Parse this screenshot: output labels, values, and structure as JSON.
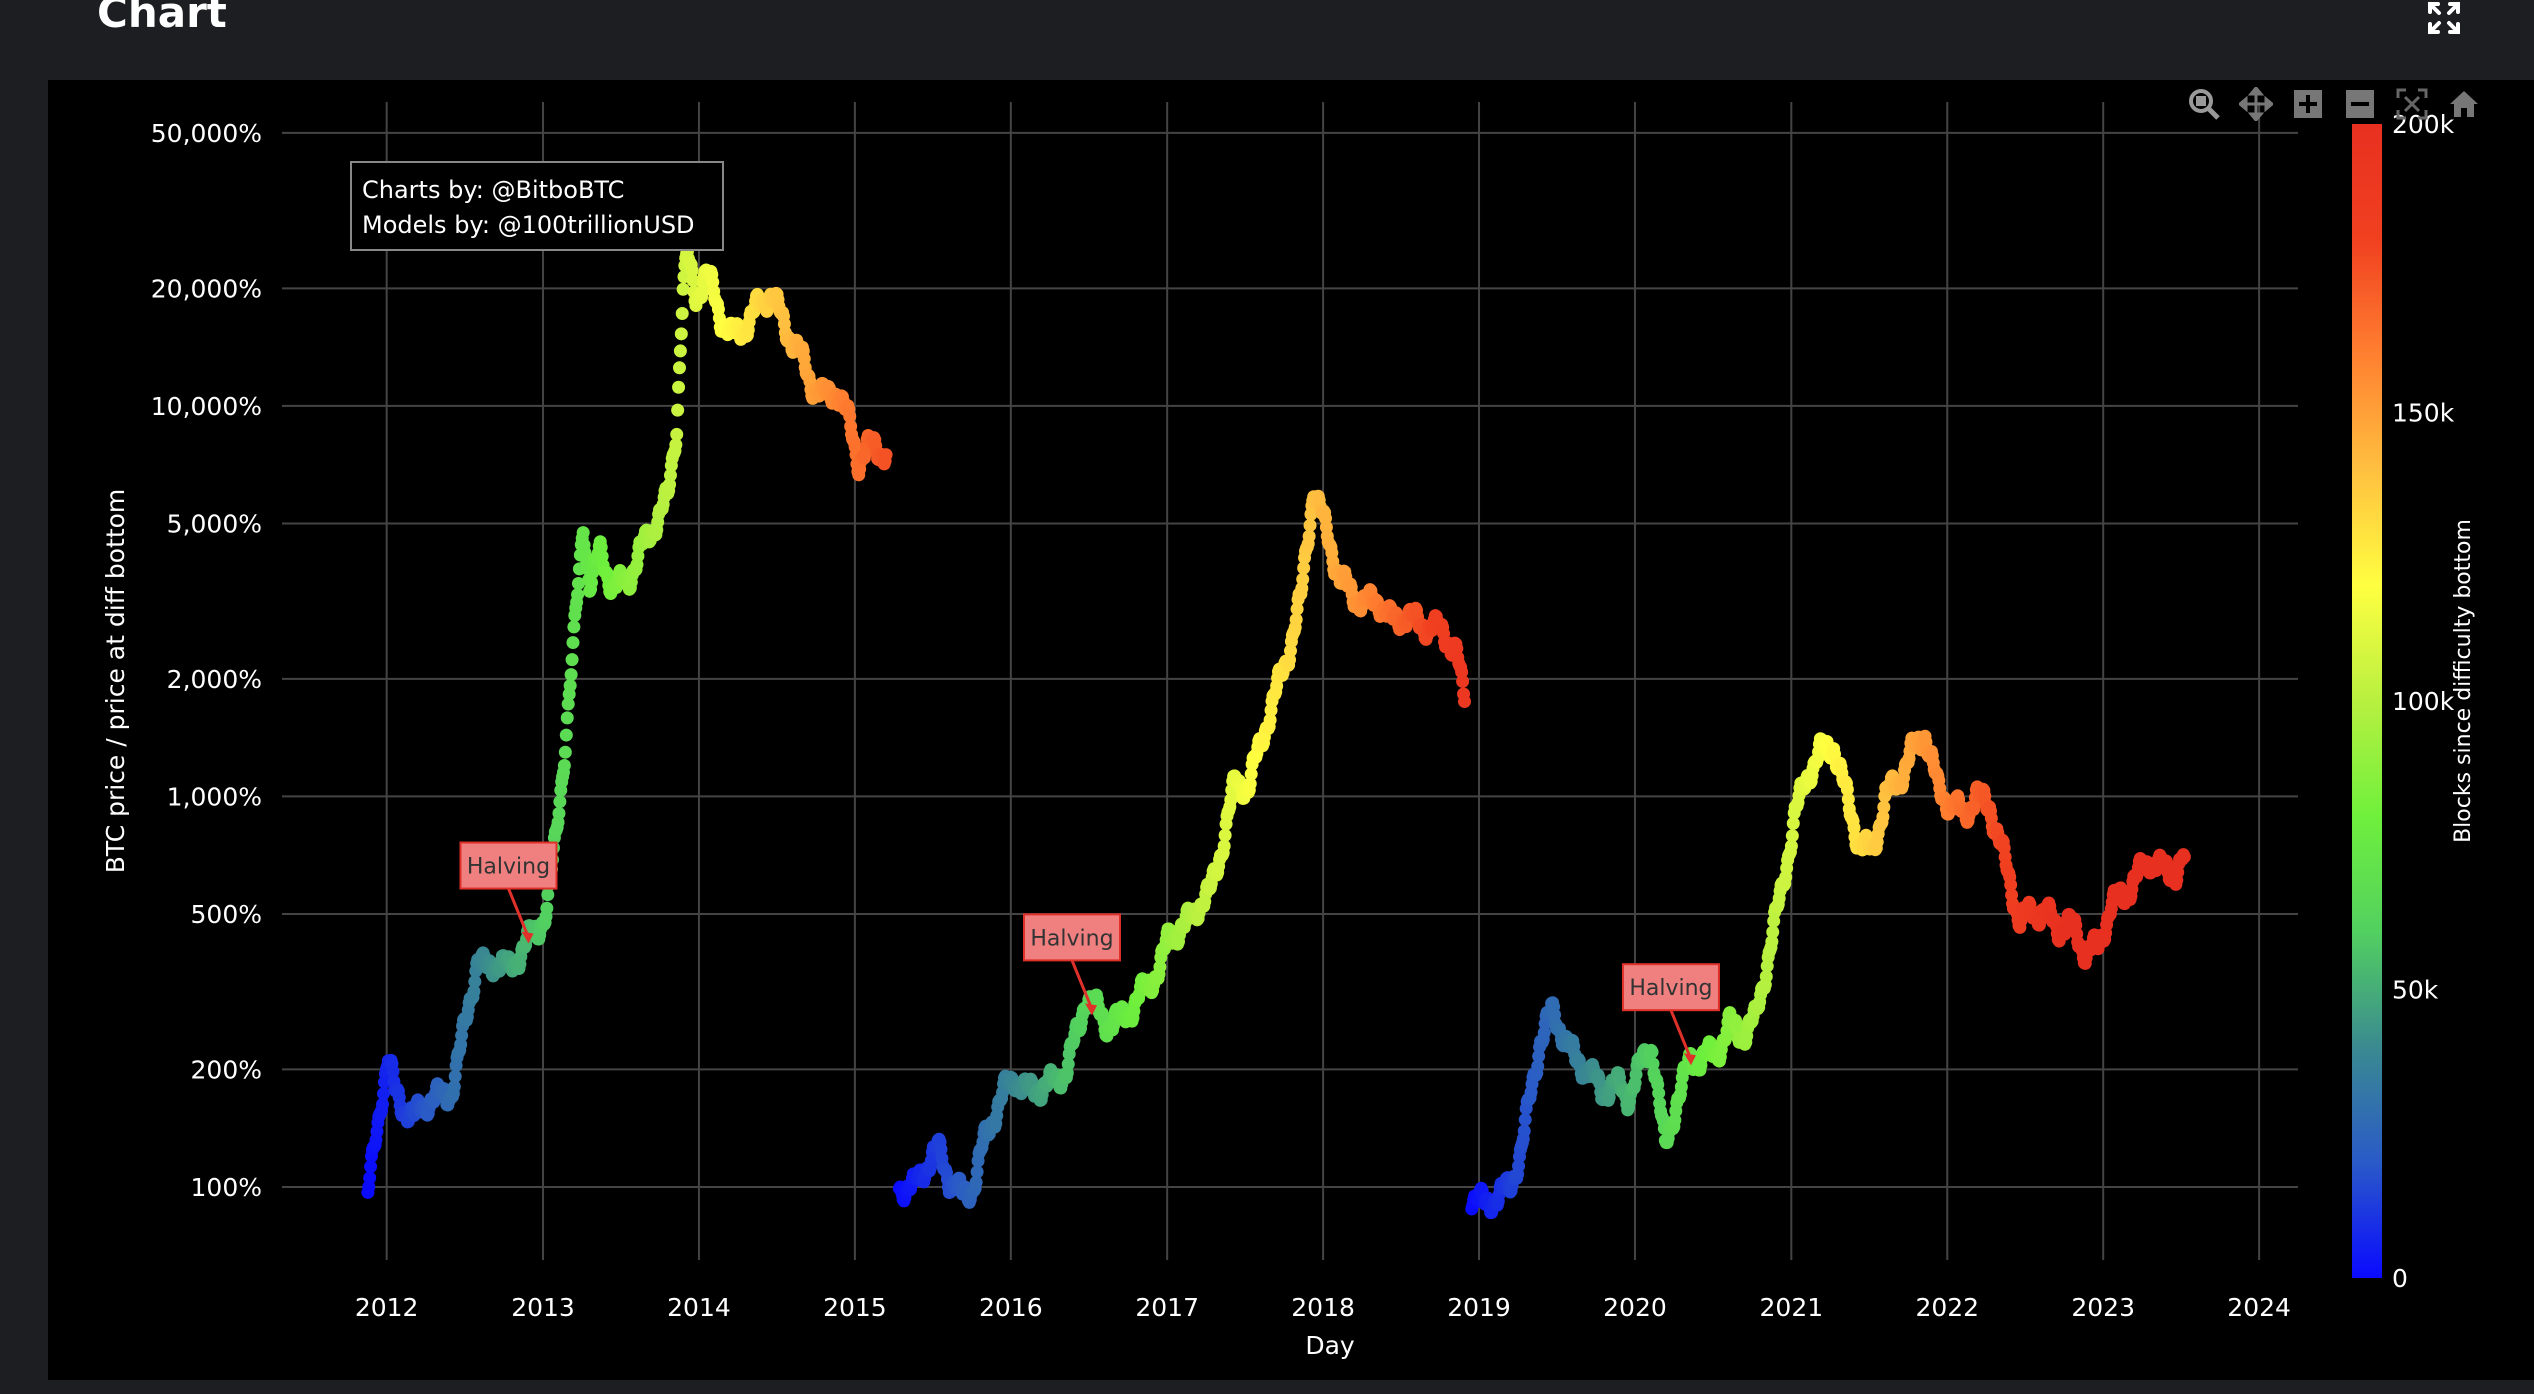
{
  "panel": {
    "title": "Chart"
  },
  "credits": {
    "line1": "Charts by: @BitboBTC",
    "line2": "Models by: @100trillionUSD"
  },
  "chart_data": {
    "type": "scatter",
    "xlabel": "Day",
    "ylabel": "BTC price / price at diff bottom",
    "x_scale": "time",
    "xlim": [
      "2011-05-01",
      "2024-04-01"
    ],
    "x_ticks": [
      "2012",
      "2013",
      "2014",
      "2015",
      "2016",
      "2017",
      "2018",
      "2019",
      "2020",
      "2021",
      "2022",
      "2023",
      "2024"
    ],
    "y_scale": "log",
    "ylim": [
      65,
      60000
    ],
    "y_ticks": [
      {
        "value": 100,
        "label": "100%"
      },
      {
        "value": 200,
        "label": "200%"
      },
      {
        "value": 500,
        "label": "500%"
      },
      {
        "value": 1000,
        "label": "1,000%"
      },
      {
        "value": 2000,
        "label": "2,000%"
      },
      {
        "value": 5000,
        "label": "5,000%"
      },
      {
        "value": 10000,
        "label": "10,000%"
      },
      {
        "value": 20000,
        "label": "20,000%"
      },
      {
        "value": 50000,
        "label": "50,000%"
      }
    ],
    "grid": true,
    "colorbar": {
      "title": "Blocks since difficulty bottom",
      "range": [
        0,
        200000
      ],
      "ticks": [
        {
          "value": 0,
          "label": "0"
        },
        {
          "value": 50000,
          "label": "50k"
        },
        {
          "value": 100000,
          "label": "100k"
        },
        {
          "value": 150000,
          "label": "150k"
        },
        {
          "value": 200000,
          "label": "200k"
        }
      ],
      "colors": [
        "#0a0aff",
        "#2a5ac8",
        "#3a8a90",
        "#52d060",
        "#6ff03c",
        "#b8f040",
        "#ffff40",
        "#ffc040",
        "#ff8030",
        "#f04020",
        "#e83020"
      ]
    },
    "series": [
      {
        "cycle_start": "2011-11-18",
        "points": [
          [
            "2011-11-18",
            95
          ],
          [
            "2011-12-05",
            130
          ],
          [
            "2011-12-20",
            170
          ],
          [
            "2012-01-05",
            215
          ],
          [
            "2012-01-20",
            175
          ],
          [
            "2012-02-10",
            160
          ],
          [
            "2012-03-05",
            150
          ],
          [
            "2012-04-01",
            165
          ],
          [
            "2012-05-01",
            170
          ],
          [
            "2012-06-01",
            175
          ],
          [
            "2012-06-20",
            220
          ],
          [
            "2012-07-10",
            290
          ],
          [
            "2012-08-01",
            380
          ],
          [
            "2012-08-20",
            360
          ],
          [
            "2012-09-15",
            380
          ],
          [
            "2012-10-15",
            360
          ],
          [
            "2012-11-10",
            400
          ],
          [
            "2012-11-28",
            430
          ],
          [
            "2012-12-20",
            460
          ],
          [
            "2013-01-10",
            510
          ],
          [
            "2013-02-01",
            800
          ],
          [
            "2013-02-20",
            1300
          ],
          [
            "2013-03-10",
            2200
          ],
          [
            "2013-03-25",
            3500
          ],
          [
            "2013-04-05",
            5000
          ],
          [
            "2013-04-20",
            3500
          ],
          [
            "2013-05-15",
            4200
          ],
          [
            "2013-06-15",
            3400
          ],
          [
            "2013-07-20",
            3600
          ],
          [
            "2013-08-20",
            4300
          ],
          [
            "2013-09-20",
            5000
          ],
          [
            "2013-10-20",
            5800
          ],
          [
            "2013-11-10",
            9000
          ],
          [
            "2013-11-25",
            20000
          ],
          [
            "2013-12-05",
            24000
          ],
          [
            "2013-12-25",
            19000
          ],
          [
            "2014-01-20",
            22000
          ],
          [
            "2014-02-20",
            17000
          ],
          [
            "2014-03-20",
            15000
          ],
          [
            "2014-04-20",
            16000
          ],
          [
            "2014-05-20",
            18000
          ],
          [
            "2014-06-20",
            19500
          ],
          [
            "2014-07-20",
            16000
          ],
          [
            "2014-08-20",
            14000
          ],
          [
            "2014-09-20",
            11500
          ],
          [
            "2014-10-20",
            10500
          ],
          [
            "2014-11-20",
            11000
          ],
          [
            "2014-12-20",
            9000
          ],
          [
            "2015-01-10",
            7200
          ],
          [
            "2015-02-10",
            8000
          ],
          [
            "2015-03-15",
            7500
          ]
        ]
      },
      {
        "cycle_start": "2015-04-15",
        "points": [
          [
            "2015-04-15",
            100
          ],
          [
            "2015-05-20",
            100
          ],
          [
            "2015-06-20",
            115
          ],
          [
            "2015-07-15",
            125
          ],
          [
            "2015-08-10",
            105
          ],
          [
            "2015-09-10",
            95
          ],
          [
            "2015-10-05",
            100
          ],
          [
            "2015-10-30",
            130
          ],
          [
            "2015-11-20",
            150
          ],
          [
            "2015-12-15",
            175
          ],
          [
            "2016-01-10",
            190
          ],
          [
            "2016-02-10",
            175
          ],
          [
            "2016-03-10",
            180
          ],
          [
            "2016-04-10",
            185
          ],
          [
            "2016-05-10",
            200
          ],
          [
            "2016-06-10",
            260
          ],
          [
            "2016-06-25",
            310
          ],
          [
            "2016-07-15",
            290
          ],
          [
            "2016-08-15",
            260
          ],
          [
            "2016-09-15",
            270
          ],
          [
            "2016-10-15",
            290
          ],
          [
            "2016-11-15",
            330
          ],
          [
            "2016-12-15",
            360
          ],
          [
            "2017-01-05",
            440
          ],
          [
            "2017-02-10",
            460
          ],
          [
            "2017-03-10",
            520
          ],
          [
            "2017-04-10",
            560
          ],
          [
            "2017-05-10",
            750
          ],
          [
            "2017-06-10",
            1100
          ],
          [
            "2017-07-10",
            1050
          ],
          [
            "2017-08-10",
            1400
          ],
          [
            "2017-09-10",
            1800
          ],
          [
            "2017-10-10",
            2300
          ],
          [
            "2017-11-10",
            3200
          ],
          [
            "2017-11-25",
            4500
          ],
          [
            "2017-12-10",
            6200
          ],
          [
            "2017-12-25",
            5400
          ],
          [
            "2018-01-15",
            4500
          ],
          [
            "2018-02-10",
            3600
          ],
          [
            "2018-03-10",
            3300
          ],
          [
            "2018-04-10",
            3100
          ],
          [
            "2018-05-10",
            3200
          ],
          [
            "2018-06-10",
            2800
          ],
          [
            "2018-07-10",
            2900
          ],
          [
            "2018-08-10",
            2800
          ],
          [
            "2018-09-10",
            2700
          ],
          [
            "2018-10-10",
            2650
          ],
          [
            "2018-11-10",
            2300
          ],
          [
            "2018-11-28",
            1750
          ]
        ]
      },
      {
        "cycle_start": "2018-12-15",
        "points": [
          [
            "2018-12-15",
            95
          ],
          [
            "2019-01-15",
            90
          ],
          [
            "2019-02-15",
            95
          ],
          [
            "2019-03-15",
            100
          ],
          [
            "2019-04-10",
            125
          ],
          [
            "2019-05-05",
            180
          ],
          [
            "2019-05-25",
            240
          ],
          [
            "2019-06-20",
            280
          ],
          [
            "2019-07-15",
            250
          ],
          [
            "2019-08-15",
            210
          ],
          [
            "2019-09-15",
            200
          ],
          [
            "2019-10-15",
            175
          ],
          [
            "2019-11-15",
            185
          ],
          [
            "2019-12-15",
            170
          ],
          [
            "2020-01-10",
            200
          ],
          [
            "2020-02-10",
            230
          ],
          [
            "2020-03-12",
            125
          ],
          [
            "2020-04-10",
            170
          ],
          [
            "2020-05-10",
            210
          ],
          [
            "2020-06-10",
            215
          ],
          [
            "2020-07-10",
            220
          ],
          [
            "2020-08-10",
            260
          ],
          [
            "2020-09-10",
            245
          ],
          [
            "2020-10-10",
            270
          ],
          [
            "2020-11-10",
            400
          ],
          [
            "2020-12-10",
            580
          ],
          [
            "2021-01-10",
            900
          ],
          [
            "2021-02-10",
            1150
          ],
          [
            "2021-03-10",
            1300
          ],
          [
            "2021-04-10",
            1350
          ],
          [
            "2021-05-10",
            1000
          ],
          [
            "2021-06-10",
            750
          ],
          [
            "2021-07-10",
            720
          ],
          [
            "2021-08-10",
            1000
          ],
          [
            "2021-09-10",
            1100
          ],
          [
            "2021-10-10",
            1300
          ],
          [
            "2021-11-10",
            1450
          ],
          [
            "2021-12-10",
            1050
          ],
          [
            "2022-01-10",
            950
          ],
          [
            "2022-02-10",
            900
          ],
          [
            "2022-03-10",
            1000
          ],
          [
            "2022-04-10",
            950
          ],
          [
            "2022-05-10",
            720
          ],
          [
            "2022-06-20",
            480
          ],
          [
            "2022-07-20",
            510
          ],
          [
            "2022-08-20",
            500
          ],
          [
            "2022-09-20",
            460
          ],
          [
            "2022-10-20",
            470
          ],
          [
            "2022-11-20",
            400
          ],
          [
            "2022-12-20",
            410
          ],
          [
            "2023-01-20",
            530
          ],
          [
            "2023-02-20",
            560
          ],
          [
            "2023-03-20",
            620
          ],
          [
            "2023-04-20",
            690
          ],
          [
            "2023-05-20",
            650
          ],
          [
            "2023-06-20",
            640
          ],
          [
            "2023-07-10",
            700
          ]
        ]
      }
    ],
    "annotations": [
      {
        "text": "Halving",
        "x": "2012-11-28",
        "y": 420
      },
      {
        "text": "Halving",
        "x": "2016-07-09",
        "y": 275
      },
      {
        "text": "Halving",
        "x": "2020-05-11",
        "y": 205
      }
    ]
  }
}
